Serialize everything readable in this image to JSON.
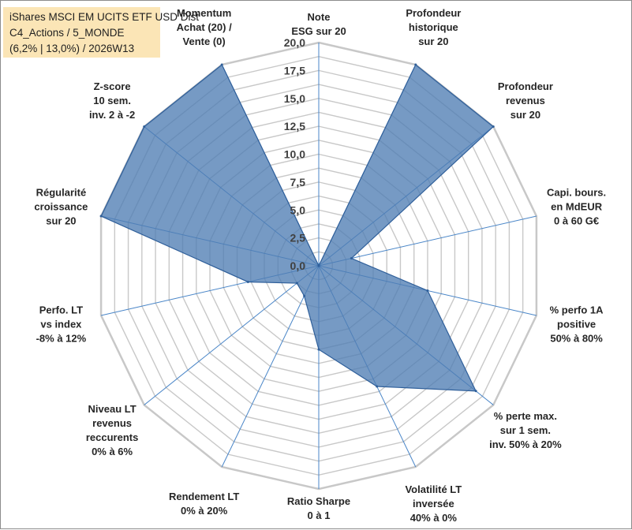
{
  "title": {
    "line1": "iShares MSCI EM UCITS ETF USD Dist",
    "line2": "C4_Actions / 5_MONDE",
    "line3": "(6,2% | 13,0%) / 2026W13"
  },
  "colors": {
    "fill": "#4f7db4",
    "stroke": "#2f5f9a",
    "grid": "#c8c8c8",
    "spoke": "#4a86c8",
    "title_bg": "#fbe5b6"
  },
  "chart_data": {
    "type": "radar",
    "range": [
      0,
      20
    ],
    "tick_step": 1.25,
    "tick_labels": [
      "0,0",
      "2,5",
      "5,0",
      "7,5",
      "10,0",
      "12,5",
      "15,0",
      "17,5",
      "20,0"
    ],
    "axes": [
      {
        "label": [
          "Note",
          "ESG sur 20"
        ],
        "value": 0
      },
      {
        "label": [
          "Profondeur",
          "historique",
          "sur 20"
        ],
        "value": 20
      },
      {
        "label": [
          "Profondeur",
          "revenus",
          "sur 20"
        ],
        "value": 20
      },
      {
        "label": [
          "Capi. bours.",
          "en MdEUR",
          "0 à 60 G€"
        ],
        "value": 3
      },
      {
        "label": [
          "% perfo 1A",
          "positive",
          "50% à 80%"
        ],
        "value": 10
      },
      {
        "label": [
          "% perte max.",
          "sur 1 sem.",
          "inv. 50% à 20%"
        ],
        "value": 18
      },
      {
        "label": [
          "Volatilité LT",
          "inversée",
          "40% à 0%"
        ],
        "value": 12
      },
      {
        "label": [
          "Ratio Sharpe",
          "0 à 1"
        ],
        "value": 7.5
      },
      {
        "label": [
          "Rendement LT",
          "0% à 20%"
        ],
        "value": 3
      },
      {
        "label": [
          "Niveau LT",
          "revenus",
          "reccurents",
          "0% à 6%"
        ],
        "value": 2.5
      },
      {
        "label": [
          "Perfo. LT",
          "vs index",
          "-8% à 12%"
        ],
        "value": 6.5
      },
      {
        "label": [
          "Régularité",
          "croissance",
          "sur 20"
        ],
        "value": 20
      },
      {
        "label": [
          "Z-score",
          "10 sem.",
          "inv. 2 à -2"
        ],
        "value": 20
      },
      {
        "label": [
          "Momentum",
          "Achat (20) /",
          "Vente (0)"
        ],
        "value": 20
      }
    ]
  }
}
